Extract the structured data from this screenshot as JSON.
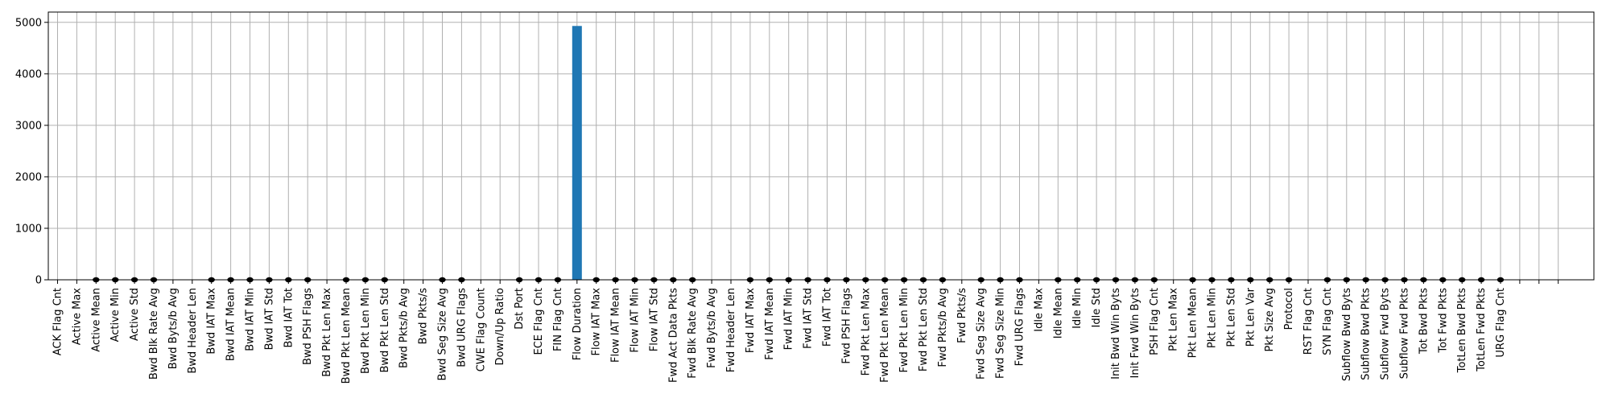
{
  "chart_data": {
    "type": "bar",
    "title": "",
    "xlabel": "",
    "ylabel": "",
    "ylim": [
      0,
      5200
    ],
    "yticks": [
      0,
      1000,
      2000,
      3000,
      4000,
      5000
    ],
    "grid": true,
    "legend": "none",
    "bar_color": "#1f77b4",
    "marker_color": "#000000",
    "extra_grid_slots": 3,
    "categories": [
      "ACK Flag Cnt",
      "Active Max",
      "Active Mean",
      "Active Min",
      "Active Std",
      "Bwd Blk Rate Avg",
      "Bwd Byts/b Avg",
      "Bwd Header Len",
      "Bwd IAT Max",
      "Bwd IAT Mean",
      "Bwd IAT Min",
      "Bwd IAT Std",
      "Bwd IAT Tot",
      "Bwd PSH Flags",
      "Bwd Pkt Len Max",
      "Bwd Pkt Len Mean",
      "Bwd Pkt Len Min",
      "Bwd Pkt Len Std",
      "Bwd Pkts/b Avg",
      "Bwd Pkts/s",
      "Bwd Seg Size Avg",
      "Bwd URG Flags",
      "CWE Flag Count",
      "Down/Up Ratio",
      "Dst Port",
      "ECE Flag Cnt",
      "FIN Flag Cnt",
      "Flow Duration",
      "Flow IAT Max",
      "Flow IAT Mean",
      "Flow IAT Min",
      "Flow IAT Std",
      "Fwd Act Data Pkts",
      "Fwd Blk Rate Avg",
      "Fwd Byts/b Avg",
      "Fwd Header Len",
      "Fwd IAT Max",
      "Fwd IAT Mean",
      "Fwd IAT Min",
      "Fwd IAT Std",
      "Fwd IAT Tot",
      "Fwd PSH Flags",
      "Fwd Pkt Len Max",
      "Fwd Pkt Len Mean",
      "Fwd Pkt Len Min",
      "Fwd Pkt Len Std",
      "Fwd Pkts/b Avg",
      "Fwd Pkts/s",
      "Fwd Seg Size Avg",
      "Fwd Seg Size Min",
      "Fwd URG Flags",
      "Idle Max",
      "Idle Mean",
      "Idle Min",
      "Idle Std",
      "Init Bwd Win Byts",
      "Init Fwd Win Byts",
      "PSH Flag Cnt",
      "Pkt Len Max",
      "Pkt Len Mean",
      "Pkt Len Min",
      "Pkt Len Std",
      "Pkt Len Var",
      "Pkt Size Avg",
      "Protocol",
      "RST Flag Cnt",
      "SYN Flag Cnt",
      "Subflow Bwd Byts",
      "Subflow Bwd Pkts",
      "Subflow Fwd Byts",
      "Subflow Fwd Pkts",
      "Tot Bwd Pkts",
      "Tot Fwd Pkts",
      "TotLen Bwd Pkts",
      "TotLen Fwd Pkts",
      "URG Flag Cnt"
    ],
    "values": [
      0,
      0,
      0,
      0,
      0,
      0,
      0,
      0,
      0,
      0,
      0,
      0,
      0,
      0,
      0,
      0,
      0,
      0,
      0,
      0,
      0,
      0,
      0,
      0,
      0,
      0,
      0,
      4930,
      0,
      0,
      0,
      0,
      0,
      0,
      0,
      0,
      0,
      0,
      0,
      0,
      0,
      0,
      0,
      0,
      0,
      0,
      0,
      0,
      0,
      0,
      0,
      0,
      0,
      0,
      0,
      0,
      0,
      0,
      0,
      0,
      0,
      0,
      0,
      0,
      0,
      0,
      0,
      0,
      0,
      0,
      0,
      0,
      0,
      0,
      0,
      0
    ],
    "markers": [
      false,
      false,
      true,
      true,
      true,
      true,
      false,
      false,
      true,
      true,
      true,
      true,
      true,
      true,
      false,
      true,
      true,
      true,
      false,
      false,
      true,
      true,
      false,
      false,
      true,
      true,
      true,
      false,
      true,
      true,
      true,
      true,
      true,
      true,
      false,
      false,
      true,
      true,
      true,
      true,
      true,
      true,
      true,
      true,
      true,
      true,
      true,
      false,
      true,
      true,
      true,
      false,
      true,
      true,
      true,
      true,
      true,
      true,
      false,
      true,
      true,
      true,
      true,
      true,
      true,
      false,
      true,
      true,
      true,
      true,
      true,
      true,
      true,
      true,
      true,
      true
    ]
  }
}
